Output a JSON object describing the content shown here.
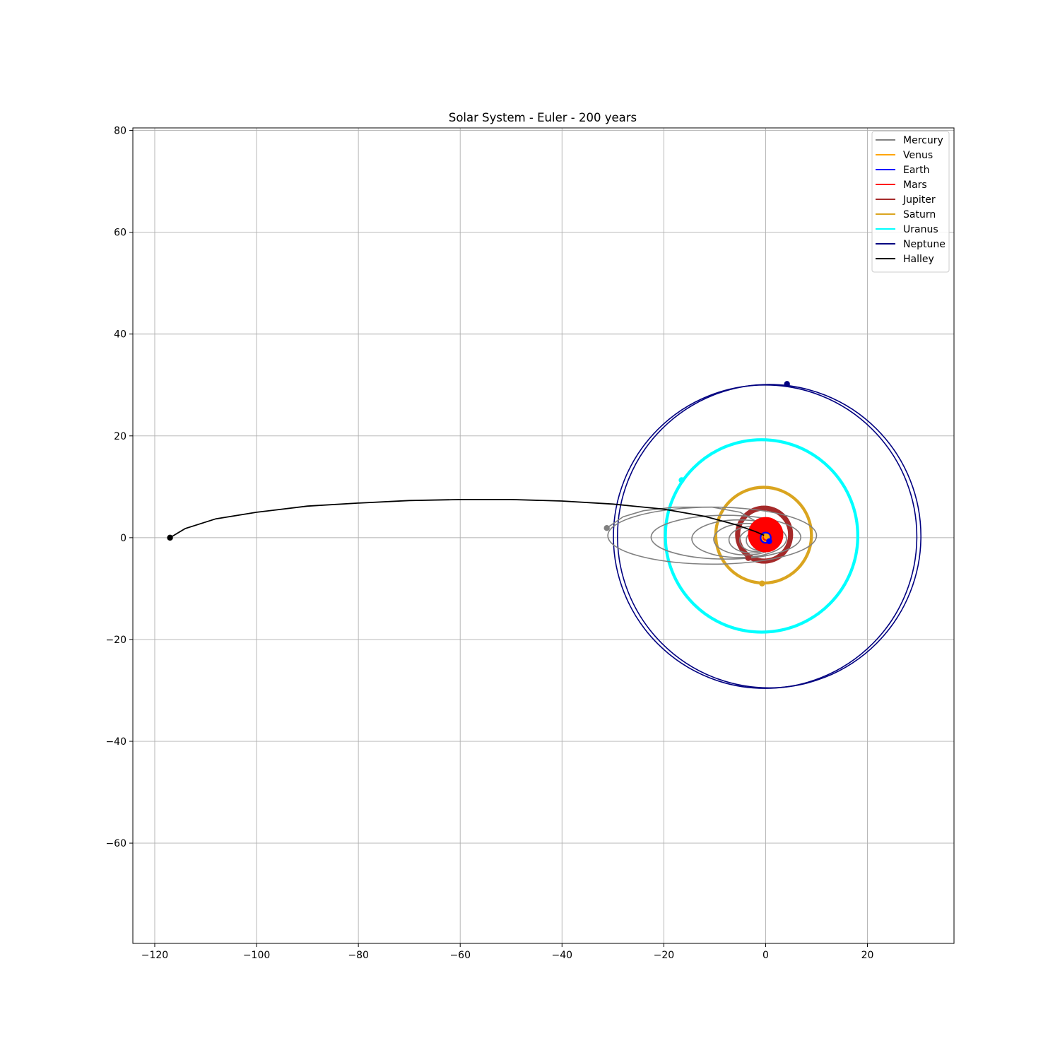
{
  "chart_data": {
    "type": "line",
    "title": "Solar System - Euler - 200 years",
    "xlabel": "",
    "ylabel": "",
    "xlim": [
      -124.3,
      37
    ],
    "ylim": [
      -79.7,
      80.5
    ],
    "xticks": [
      -120,
      -100,
      -80,
      -60,
      -40,
      -20,
      0,
      20
    ],
    "yticks": [
      -60,
      -40,
      -20,
      0,
      20,
      40,
      60,
      80
    ],
    "xtick_labels": [
      "−120",
      "−100",
      "−80",
      "−60",
      "−40",
      "−20",
      "0",
      "20"
    ],
    "ytick_labels": [
      "−60",
      "−40",
      "−20",
      "0",
      "20",
      "40",
      "60",
      "80"
    ],
    "grid": true,
    "legend_position": "upper right",
    "series": [
      {
        "name": "Mercury",
        "color": "#808080",
        "final_position": [
          -31.2,
          1.9
        ]
      },
      {
        "name": "Venus",
        "color": "#ffa500",
        "final_position": [
          0.2,
          0.2
        ]
      },
      {
        "name": "Earth",
        "color": "#0000ff",
        "final_position": [
          0.7,
          -0.7
        ]
      },
      {
        "name": "Mars",
        "color": "#ff0000",
        "final_position": [
          1.0,
          2.5
        ]
      },
      {
        "name": "Jupiter",
        "color": "#a52a2a",
        "final_position": [
          -3.4,
          -4.0
        ]
      },
      {
        "name": "Saturn",
        "color": "#daa520",
        "final_position": [
          -0.7,
          -9.0
        ]
      },
      {
        "name": "Uranus",
        "color": "#00ffff",
        "final_position": [
          -16.5,
          11.3
        ]
      },
      {
        "name": "Neptune",
        "color": "#000080",
        "final_position": [
          4.2,
          30.2
        ]
      },
      {
        "name": "Halley",
        "color": "#000000",
        "final_position": [
          -117.0,
          0.0
        ]
      }
    ],
    "orbits": {
      "mercury_spiral": [
        {
          "cx": -10.5,
          "cy": 0.4,
          "rx": 20.5,
          "ry": 5.6
        },
        {
          "cx": -7.8,
          "cy": 0.1,
          "rx": 14.7,
          "ry": 4.3
        },
        {
          "cx": -5.2,
          "cy": -0.2,
          "rx": 9.3,
          "ry": 3.7
        },
        {
          "cx": -3.8,
          "cy": -0.3,
          "rx": 6.4,
          "ry": 3.1
        },
        {
          "cx": -2.8,
          "cy": -0.4,
          "rx": 4.4,
          "ry": 2.6
        },
        {
          "cx": -2.1,
          "cy": -0.5,
          "rx": 3.0,
          "ry": 2.2
        },
        {
          "cx": -1.6,
          "cy": -0.5,
          "rx": 2.2,
          "ry": 1.9
        }
      ],
      "mercury_spiral_tail": [
        [
          -31.2,
          1.9
        ],
        [
          -28.0,
          4.1
        ],
        [
          -24.0,
          5.3
        ],
        [
          -18.0,
          6.0
        ],
        [
          -10.5,
          6.0
        ],
        [
          -5.0,
          5.0
        ],
        [
          -1.5,
          3.0
        ],
        [
          -0.3,
          1.0
        ]
      ],
      "venus": {
        "cx": 0.0,
        "cy": 0.0,
        "r": 0.72
      },
      "earth": {
        "cx": 0.0,
        "cy": 0.0,
        "r": 1.0
      },
      "mars_band": {
        "cx": 0.0,
        "cy": 0.6,
        "r_inner": 0.8,
        "r_outer": 3.4
      },
      "jupiter_band": {
        "cx": -0.3,
        "cy": 0.6,
        "r_inner": 4.8,
        "r_outer": 5.6
      },
      "saturn_band": {
        "cx": -0.4,
        "cy": 0.5,
        "r_inner": 9.2,
        "r_outer": 9.6
      },
      "uranus_band": {
        "cx": -0.8,
        "cy": 0.35,
        "r_inner": 18.7,
        "r_outer": 19.1
      },
      "neptune": {
        "cx": -0.1,
        "cy": 0.2,
        "r": 29.8,
        "second_loop_shift": [
          0.8,
          0.1
        ]
      },
      "halley_path": [
        [
          -117.0,
          0.0
        ],
        [
          -114.0,
          1.8
        ],
        [
          -108.0,
          3.7
        ],
        [
          -100.0,
          5.0
        ],
        [
          -90.0,
          6.2
        ],
        [
          -80.0,
          6.8
        ],
        [
          -70.0,
          7.3
        ],
        [
          -60.0,
          7.5
        ],
        [
          -50.0,
          7.5
        ],
        [
          -40.0,
          7.2
        ],
        [
          -30.0,
          6.6
        ],
        [
          -20.0,
          5.6
        ],
        [
          -12.0,
          4.2
        ],
        [
          -6.0,
          2.6
        ],
        [
          -2.0,
          1.2
        ],
        [
          0.3,
          0.2
        ]
      ]
    }
  }
}
